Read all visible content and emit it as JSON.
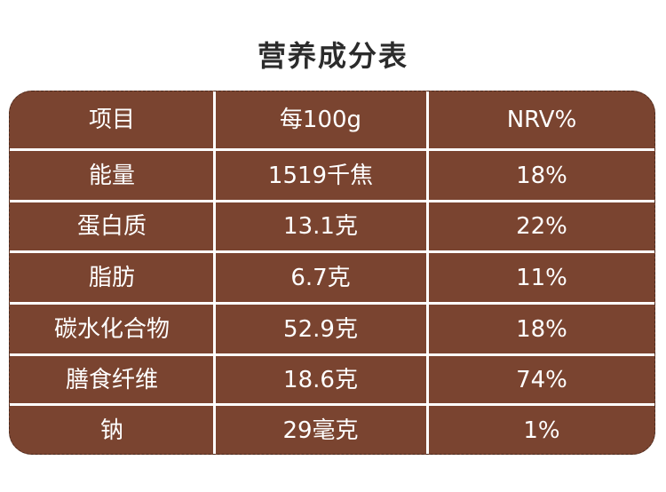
{
  "title": "营养成分表",
  "table": {
    "header": [
      "项目",
      "每100g",
      "NRV%"
    ],
    "rows": [
      [
        "能量",
        "1519千焦",
        "18%"
      ],
      [
        "蛋白质",
        "13.1克",
        "22%"
      ],
      [
        "脂肪",
        "6.7克",
        "11%"
      ],
      [
        "碳水化合物",
        "52.9克",
        "18%"
      ],
      [
        "膳食纤维",
        "18.6克",
        "74%"
      ],
      [
        "钠",
        "29毫克",
        "1%"
      ]
    ]
  },
  "colors": {
    "table_bg": "#7a4430",
    "grid": "#ffffff",
    "cell_text": "#ffffff",
    "title_text": "#2b2b2b"
  }
}
